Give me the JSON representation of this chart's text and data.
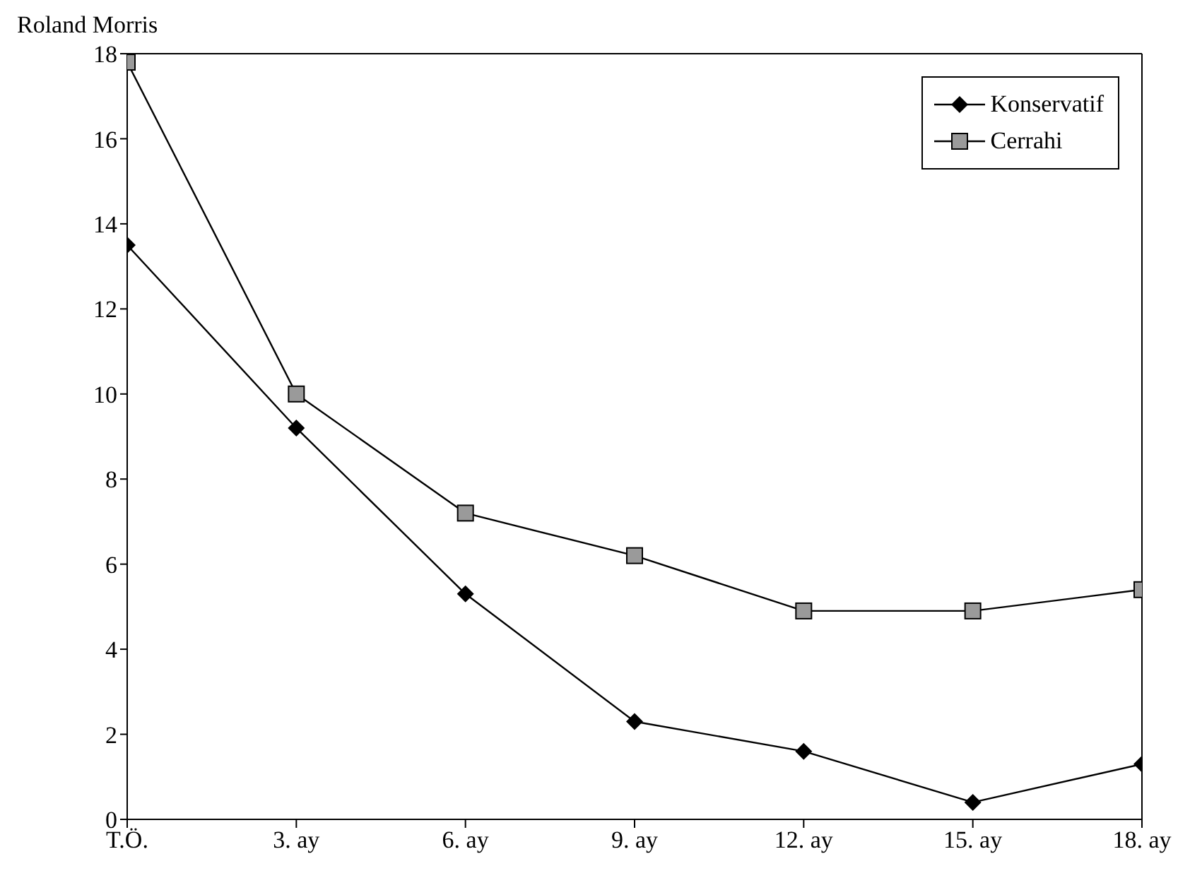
{
  "chart_data": {
    "type": "line",
    "ylabel": "Roland Morris",
    "categories": [
      "T.Ö.",
      "3. ay",
      "6. ay",
      "9. ay",
      "12. ay",
      "15. ay",
      "18. ay"
    ],
    "series": [
      {
        "name": "Konservatif",
        "color": "#000000",
        "marker": "diamond",
        "values": [
          13.5,
          9.2,
          5.3,
          2.3,
          1.6,
          0.4,
          1.3
        ]
      },
      {
        "name": "Cerrahi",
        "color": "#000000",
        "marker": "square",
        "values": [
          17.8,
          10.0,
          7.2,
          6.2,
          4.9,
          4.9,
          5.4
        ]
      }
    ],
    "ylim": [
      0,
      18
    ],
    "yticks": [
      0,
      2,
      4,
      6,
      8,
      10,
      12,
      14,
      16,
      18
    ],
    "grid": false,
    "legend": "top right",
    "line_style": "solid"
  }
}
